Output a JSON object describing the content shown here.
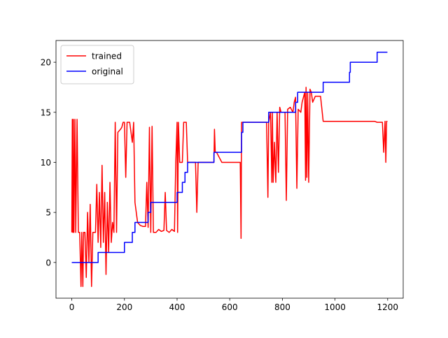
{
  "chart_data": {
    "type": "line",
    "xlim": [
      -60,
      1259
    ],
    "ylim": [
      -3.57,
      22.17
    ],
    "xticks": [
      0,
      200,
      400,
      600,
      800,
      1000,
      1200
    ],
    "yticks": [
      0,
      5,
      10,
      15,
      20
    ],
    "legend": "upper left",
    "series": [
      {
        "name": "trained",
        "color": "#ff0000",
        "x": [
          0,
          2,
          4,
          6,
          8,
          12,
          15,
          20,
          25,
          30,
          35,
          38,
          42,
          45,
          50,
          55,
          60,
          65,
          70,
          75,
          80,
          90,
          95,
          100,
          105,
          110,
          115,
          120,
          125,
          130,
          135,
          140,
          145,
          150,
          155,
          160,
          165,
          170,
          175,
          185,
          190,
          195,
          200,
          205,
          210,
          220,
          225,
          230,
          235,
          240,
          250,
          260,
          270,
          280,
          285,
          290,
          295,
          300,
          305,
          310,
          320,
          330,
          340,
          350,
          355,
          360,
          370,
          380,
          390,
          395,
          400,
          402,
          405,
          410,
          420,
          425,
          435,
          440,
          470,
          475,
          480,
          540,
          542,
          545,
          550,
          560,
          570,
          640,
          643,
          645,
          650,
          740,
          745,
          748,
          755,
          760,
          762,
          765,
          770,
          775,
          780,
          785,
          790,
          795,
          810,
          815,
          820,
          830,
          840,
          845,
          850,
          855,
          860,
          870,
          875,
          885,
          888,
          890,
          893,
          896,
          900,
          905,
          910,
          915,
          920,
          925,
          945,
          955,
          1000,
          1150,
          1160,
          1180,
          1185,
          1190,
          1193,
          1196,
          1199
        ],
        "values": [
          3,
          14.3,
          3,
          14.3,
          3,
          14.3,
          3,
          14.3,
          3,
          3,
          -2.4,
          3,
          -2.4,
          3,
          3,
          -1.5,
          5,
          0,
          5.8,
          -2.4,
          3,
          3,
          7.8,
          2,
          7,
          1.5,
          9.7,
          2,
          7,
          -1.2,
          6,
          1,
          8,
          2,
          4,
          3,
          14,
          3,
          13,
          13.3,
          13.5,
          14,
          14,
          8.5,
          14,
          14,
          13,
          12,
          14,
          6,
          4,
          3.7,
          3.6,
          3.6,
          8,
          3.5,
          13.5,
          3,
          13.6,
          3,
          3,
          3.3,
          3.1,
          3.2,
          7,
          3.2,
          3,
          3.3,
          3.1,
          10,
          14,
          3,
          14,
          10,
          10,
          14,
          14,
          10,
          10,
          5,
          10,
          10,
          13.3,
          11,
          11,
          10.5,
          10,
          10,
          2.4,
          14,
          14,
          14,
          6.5,
          14,
          15,
          8,
          15,
          8,
          12,
          8,
          15,
          9,
          15.5,
          15,
          15,
          6.2,
          15.3,
          15.5,
          15,
          16,
          16.5,
          7.4,
          15.3,
          15,
          16,
          17,
          8.2,
          17.5,
          8.5,
          17,
          8,
          17.3,
          17,
          16,
          16.3,
          16.6,
          16.6,
          14.1,
          14.1,
          14.1,
          14,
          14,
          11,
          14.1,
          10,
          14.1,
          14.1
        ]
      },
      {
        "name": "original",
        "color": "#0000ff",
        "x": [
          0,
          100,
          100,
          200,
          200,
          230,
          230,
          240,
          240,
          290,
          290,
          300,
          300,
          400,
          400,
          420,
          420,
          430,
          430,
          440,
          440,
          540,
          540,
          640,
          640,
          645,
          645,
          650,
          650,
          748,
          748,
          850,
          850,
          858,
          858,
          955,
          955,
          1055,
          1055,
          1058,
          1058,
          1160,
          1160,
          1199
        ],
        "values": [
          0,
          0,
          1,
          1,
          2,
          2,
          3,
          3,
          4,
          4,
          5,
          5,
          6,
          6,
          7,
          7,
          8,
          8,
          9,
          9,
          10,
          10,
          11,
          11,
          11,
          11,
          13,
          13,
          14,
          14,
          15,
          15,
          16,
          16,
          17,
          17,
          18,
          18,
          19,
          19,
          20,
          20,
          21,
          21
        ]
      }
    ]
  }
}
